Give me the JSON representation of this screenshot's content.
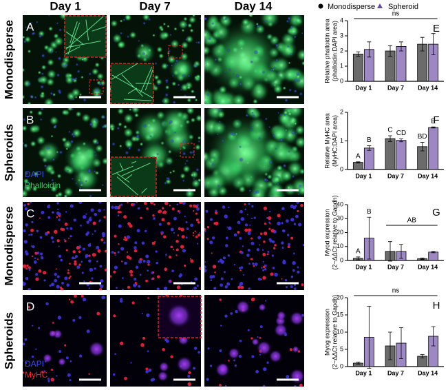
{
  "figure": {
    "column_headers": [
      "Day 1",
      "Day 7",
      "Day 14"
    ],
    "row_labels": [
      "Monodisperse",
      "Spheroids",
      "Monodisperse",
      "Spheroids"
    ],
    "panels": [
      {
        "letter": "A"
      },
      {
        "letter": "B",
        "stain_labels": [
          "DAPI",
          "Phalloidin"
        ]
      },
      {
        "letter": "C"
      },
      {
        "letter": "D",
        "stain_labels": [
          "DAPI",
          "MyHC"
        ]
      }
    ]
  },
  "chart_data": [
    {
      "type": "bar",
      "label": "E",
      "ylabel": [
        "Relative phalloidin area",
        "(phalloidin:DAPI area)"
      ],
      "categories": [
        "Day 1",
        "Day 7",
        "Day 14"
      ],
      "ylim": [
        0,
        4
      ],
      "yticks": [
        0,
        1,
        2,
        3,
        4
      ],
      "annotation": "ns",
      "series": [
        {
          "name": "Monodisperse",
          "color": "#6b6b6b",
          "values": [
            1.8,
            2.0,
            2.45
          ],
          "errors": [
            0.15,
            0.35,
            0.45
          ]
        },
        {
          "name": "Spheroid",
          "color": "#9d88c4",
          "values": [
            2.1,
            2.3,
            2.45
          ],
          "errors": [
            0.5,
            0.3,
            0.7
          ]
        }
      ]
    },
    {
      "type": "bar",
      "label": "F",
      "ylabel": [
        "Relative MyHC area",
        "(MyHC:DAPI area)"
      ],
      "categories": [
        "Day 1",
        "Day 7",
        "Day 14"
      ],
      "ylim": [
        0,
        2
      ],
      "yticks": [
        0,
        1,
        2
      ],
      "series": [
        {
          "name": "Monodisperse",
          "color": "#6b6b6b",
          "values": [
            0.25,
            1.08,
            0.8
          ],
          "errors": [
            0.02,
            0.1,
            0.15
          ],
          "letters": [
            "A",
            "C",
            "BD"
          ]
        },
        {
          "name": "Spheroid",
          "color": "#9d88c4",
          "values": [
            0.75,
            1.02,
            1.47
          ],
          "errors": [
            0.08,
            0.05,
            0.02
          ],
          "letters": [
            "B",
            "CD",
            "E"
          ]
        }
      ]
    },
    {
      "type": "bar",
      "label": "G",
      "ylabel": [
        "Myod expression",
        "(2−ΔΔCt relative to Gapdh)"
      ],
      "categories": [
        "Day 1",
        "Day 7",
        "Day 14"
      ],
      "ylim": [
        0,
        40
      ],
      "yticks": [
        0,
        10,
        20,
        30,
        40
      ],
      "annotation": "AB",
      "series": [
        {
          "name": "Monodisperse",
          "color": "#6b6b6b",
          "values": [
            1.5,
            6.5,
            1.2
          ],
          "errors": [
            1,
            7,
            0.5
          ],
          "letters": [
            "A",
            null,
            null
          ]
        },
        {
          "name": "Spheroid",
          "color": "#9d88c4",
          "values": [
            16,
            6.5,
            6
          ],
          "errors": [
            15,
            5,
            0.5
          ],
          "letters": [
            "B",
            null,
            null
          ]
        }
      ]
    },
    {
      "type": "bar",
      "label": "H",
      "ylabel": [
        "Myog expression",
        "(2−ΔΔCt relative to Gapdh)"
      ],
      "categories": [
        "Day 1",
        "Day 7",
        "Day 14"
      ],
      "ylim": [
        0,
        20
      ],
      "yticks": [
        0,
        5,
        10,
        15,
        20
      ],
      "annotation": "ns",
      "series": [
        {
          "name": "Monodisperse",
          "color": "#6b6b6b",
          "values": [
            1,
            6,
            3
          ],
          "errors": [
            0.3,
            4,
            0.5
          ]
        },
        {
          "name": "Spheroid",
          "color": "#9d88c4",
          "values": [
            8.5,
            6.8,
            8.8
          ],
          "errors": [
            9,
            4.5,
            2.8
          ]
        }
      ]
    }
  ]
}
